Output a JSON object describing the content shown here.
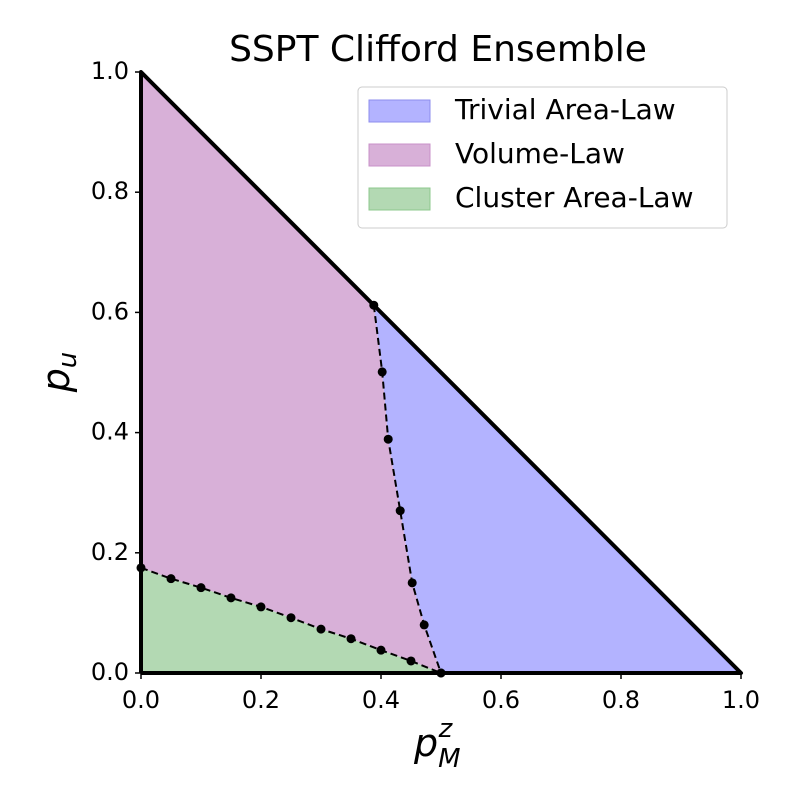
{
  "chart_data": {
    "type": "phase-diagram",
    "title": "SSPT Clifford Ensemble",
    "xlabel": {
      "text": "p",
      "subscript": "M",
      "superscript": "z"
    },
    "ylabel": {
      "text": "p",
      "subscript": "u"
    },
    "xlim": [
      0,
      1
    ],
    "ylim": [
      0,
      1
    ],
    "xticks": [
      {
        "value": 0,
        "label": "0.0"
      },
      0.2,
      0.4,
      0.6,
      0.8,
      {
        "value": 1,
        "label": "1.0"
      }
    ],
    "yticks": [
      {
        "value": 0,
        "label": "0.0"
      },
      0.2,
      0.4,
      0.6,
      0.8,
      {
        "value": 1,
        "label": "1.0"
      }
    ],
    "legend": "upper right",
    "regions": [
      {
        "name": "Trivial Area-Law",
        "color": "#b3b3ff",
        "edge": "#8c8cee"
      },
      {
        "name": "Volume-Law",
        "color": "#d8b0d8",
        "edge": "#c890c8"
      },
      {
        "name": "Cluster Area-Law",
        "color": "#b3d9b3",
        "edge": "#8cc88c"
      }
    ],
    "boundaries": [
      {
        "x": [
          0.388,
          0.402,
          0.412,
          0.432,
          0.452,
          0.472,
          0.5
        ],
        "y": [
          0.612,
          0.501,
          0.389,
          0.27,
          0.15,
          0.08,
          0
        ]
      },
      {
        "x": [
          0,
          0.05,
          0.1,
          0.15,
          0.2,
          0.25,
          0.3,
          0.35,
          0.4,
          0.45,
          0.5
        ],
        "y": [
          0.175,
          0.157,
          0.142,
          0.125,
          0.11,
          0.092,
          0.073,
          0.057,
          0.038,
          0.02,
          0
        ]
      }
    ]
  }
}
